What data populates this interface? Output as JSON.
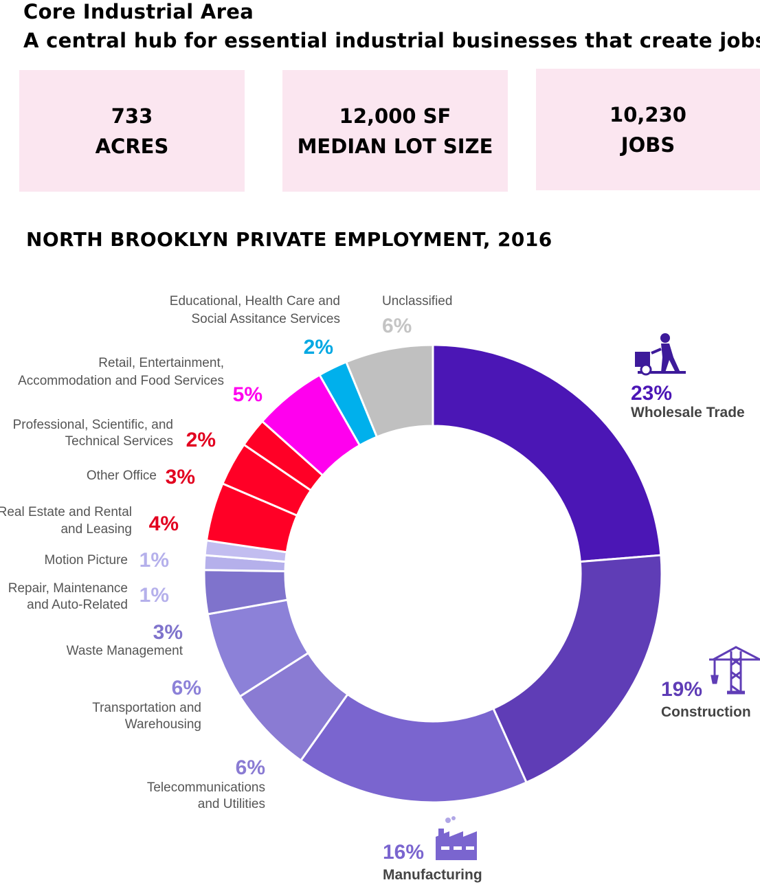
{
  "header": {
    "title": "Core Industrial Area",
    "subtitle": "A central hub for essential industrial businesses that create jobs"
  },
  "stats": [
    {
      "value": "733",
      "label": "ACRES"
    },
    {
      "value": "12,000 SF",
      "label": "MEDIAN LOT SIZE"
    },
    {
      "value": "10,230",
      "label": "JOBS"
    }
  ],
  "chart_data": {
    "type": "pie",
    "title": "NORTH BROOKLYN PRIVATE EMPLOYMENT, 2016",
    "slices": [
      {
        "name": "Wholesale Trade",
        "value": 23,
        "label": "23%",
        "color": "#4b16b5",
        "icon": "hand-truck-icon"
      },
      {
        "name": "Construction",
        "value": 19,
        "label": "19%",
        "color": "#5f3db6",
        "icon": "crane-icon"
      },
      {
        "name": "Manufacturing",
        "value": 16,
        "label": "16%",
        "color": "#7a65cf",
        "icon": "factory-icon"
      },
      {
        "name": "Telecommunications and Utilities",
        "value": 6,
        "label": "6%",
        "color": "#8a7bd3"
      },
      {
        "name": "Transportation and Warehousing",
        "value": 6,
        "label": "6%",
        "color": "#8c81d8"
      },
      {
        "name": "Waste Management",
        "value": 3,
        "label": "3%",
        "color": "#7f73cc"
      },
      {
        "name": "Repair, Maintenance and Auto-Related",
        "value": 1,
        "label": "1%",
        "color": "#b5b0eb"
      },
      {
        "name": "Motion Picture",
        "value": 1,
        "label": "1%",
        "color": "#c2bdf0"
      },
      {
        "name": "Real Estate and Rental and Leasing",
        "value": 4,
        "label": "4%",
        "color": "#ff0026"
      },
      {
        "name": "Other Office",
        "value": 3,
        "label": "3%",
        "color": "#ff0026"
      },
      {
        "name": "Professional, Scientific, and Technical Services",
        "value": 2,
        "label": "2%",
        "color": "#ff0026"
      },
      {
        "name": "Retail, Entertainment, Accommodation and Food Services",
        "value": 5,
        "label": "5%",
        "color": "#ff00ee"
      },
      {
        "name": "Educational, Health Care and Social Assitance Services",
        "value": 2,
        "label": "2%",
        "color": "#00b0ec"
      },
      {
        "name": "Unclassified",
        "value": 6,
        "label": "6%",
        "color": "#c0c0c0"
      }
    ]
  }
}
